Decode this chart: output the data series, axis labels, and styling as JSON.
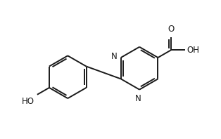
{
  "bg_color": "#ffffff",
  "line_color": "#1a1a1a",
  "line_width": 1.4,
  "font_size": 8.5,
  "figsize": [
    3.14,
    1.98
  ],
  "dpi": 100,
  "xlim": [
    0.0,
    8.5
  ],
  "ylim": [
    0.0,
    5.5
  ]
}
